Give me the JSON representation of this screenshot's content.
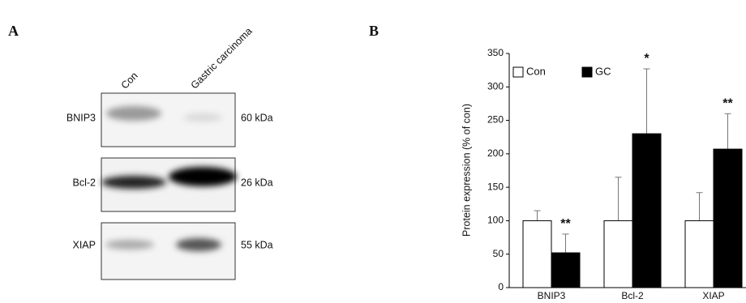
{
  "panel_labels": [
    "A",
    "B"
  ],
  "blot": {
    "lanes": [
      "Con",
      "Gastric carcinoma"
    ],
    "rows": [
      {
        "protein": "BNIP3",
        "size": "60 kDa"
      },
      {
        "protein": "Bcl-2",
        "size": "26 kDa"
      },
      {
        "protein": "XIAP",
        "size": "55 kDa"
      }
    ]
  },
  "chart_data": {
    "type": "bar",
    "y_label": "Protein expression (% of con)",
    "categories": [
      "BNIP3",
      "Bcl-2",
      "XIAP"
    ],
    "series": [
      {
        "name": "Con",
        "color": "#ffffff",
        "values": [
          100,
          100,
          100
        ],
        "errors": [
          15,
          65,
          42
        ]
      },
      {
        "name": "GC",
        "color": "#000000",
        "values": [
          52,
          230,
          207
        ],
        "errors": [
          28,
          97,
          53
        ],
        "significance": [
          "**",
          "*",
          "**"
        ]
      }
    ],
    "ylim": [
      0,
      350
    ],
    "yticks": [
      0,
      50,
      100,
      150,
      200,
      250,
      300,
      350
    ],
    "legend": "top-left"
  }
}
